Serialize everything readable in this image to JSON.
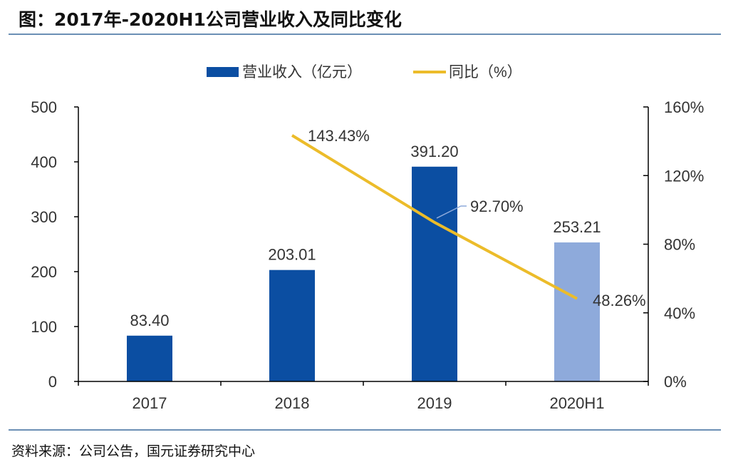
{
  "title": "图：2017年-2020H1公司营业收入及同比变化",
  "source": "资料来源：公司公告，国元证券研究中心",
  "chart_data": {
    "type": "bar+line",
    "categories": [
      "2017",
      "2018",
      "2019",
      "2020H1"
    ],
    "series": [
      {
        "name": "营业收入（亿元）",
        "type": "bar",
        "axis": "left",
        "values": [
          83.4,
          203.01,
          391.2,
          253.21
        ],
        "labels": [
          "83.40",
          "203.01",
          "391.20",
          "253.21"
        ],
        "color": "#0b4ea2",
        "highlight_color": "#8eaadb"
      },
      {
        "name": "同比（%）",
        "type": "line",
        "axis": "right",
        "values": [
          null,
          143.43,
          92.7,
          48.26
        ],
        "labels": [
          "",
          "143.43%",
          "92.70%",
          "48.26%"
        ],
        "color": "#ecbc2a"
      }
    ],
    "left_axis": {
      "range": [
        0,
        500
      ],
      "ticks": [
        "0",
        "100",
        "200",
        "300",
        "400",
        "500"
      ]
    },
    "right_axis": {
      "range": [
        0,
        160
      ],
      "ticks": [
        "0%",
        "40%",
        "80%",
        "120%",
        "160%"
      ]
    },
    "legend_position": "top",
    "grid": false
  }
}
